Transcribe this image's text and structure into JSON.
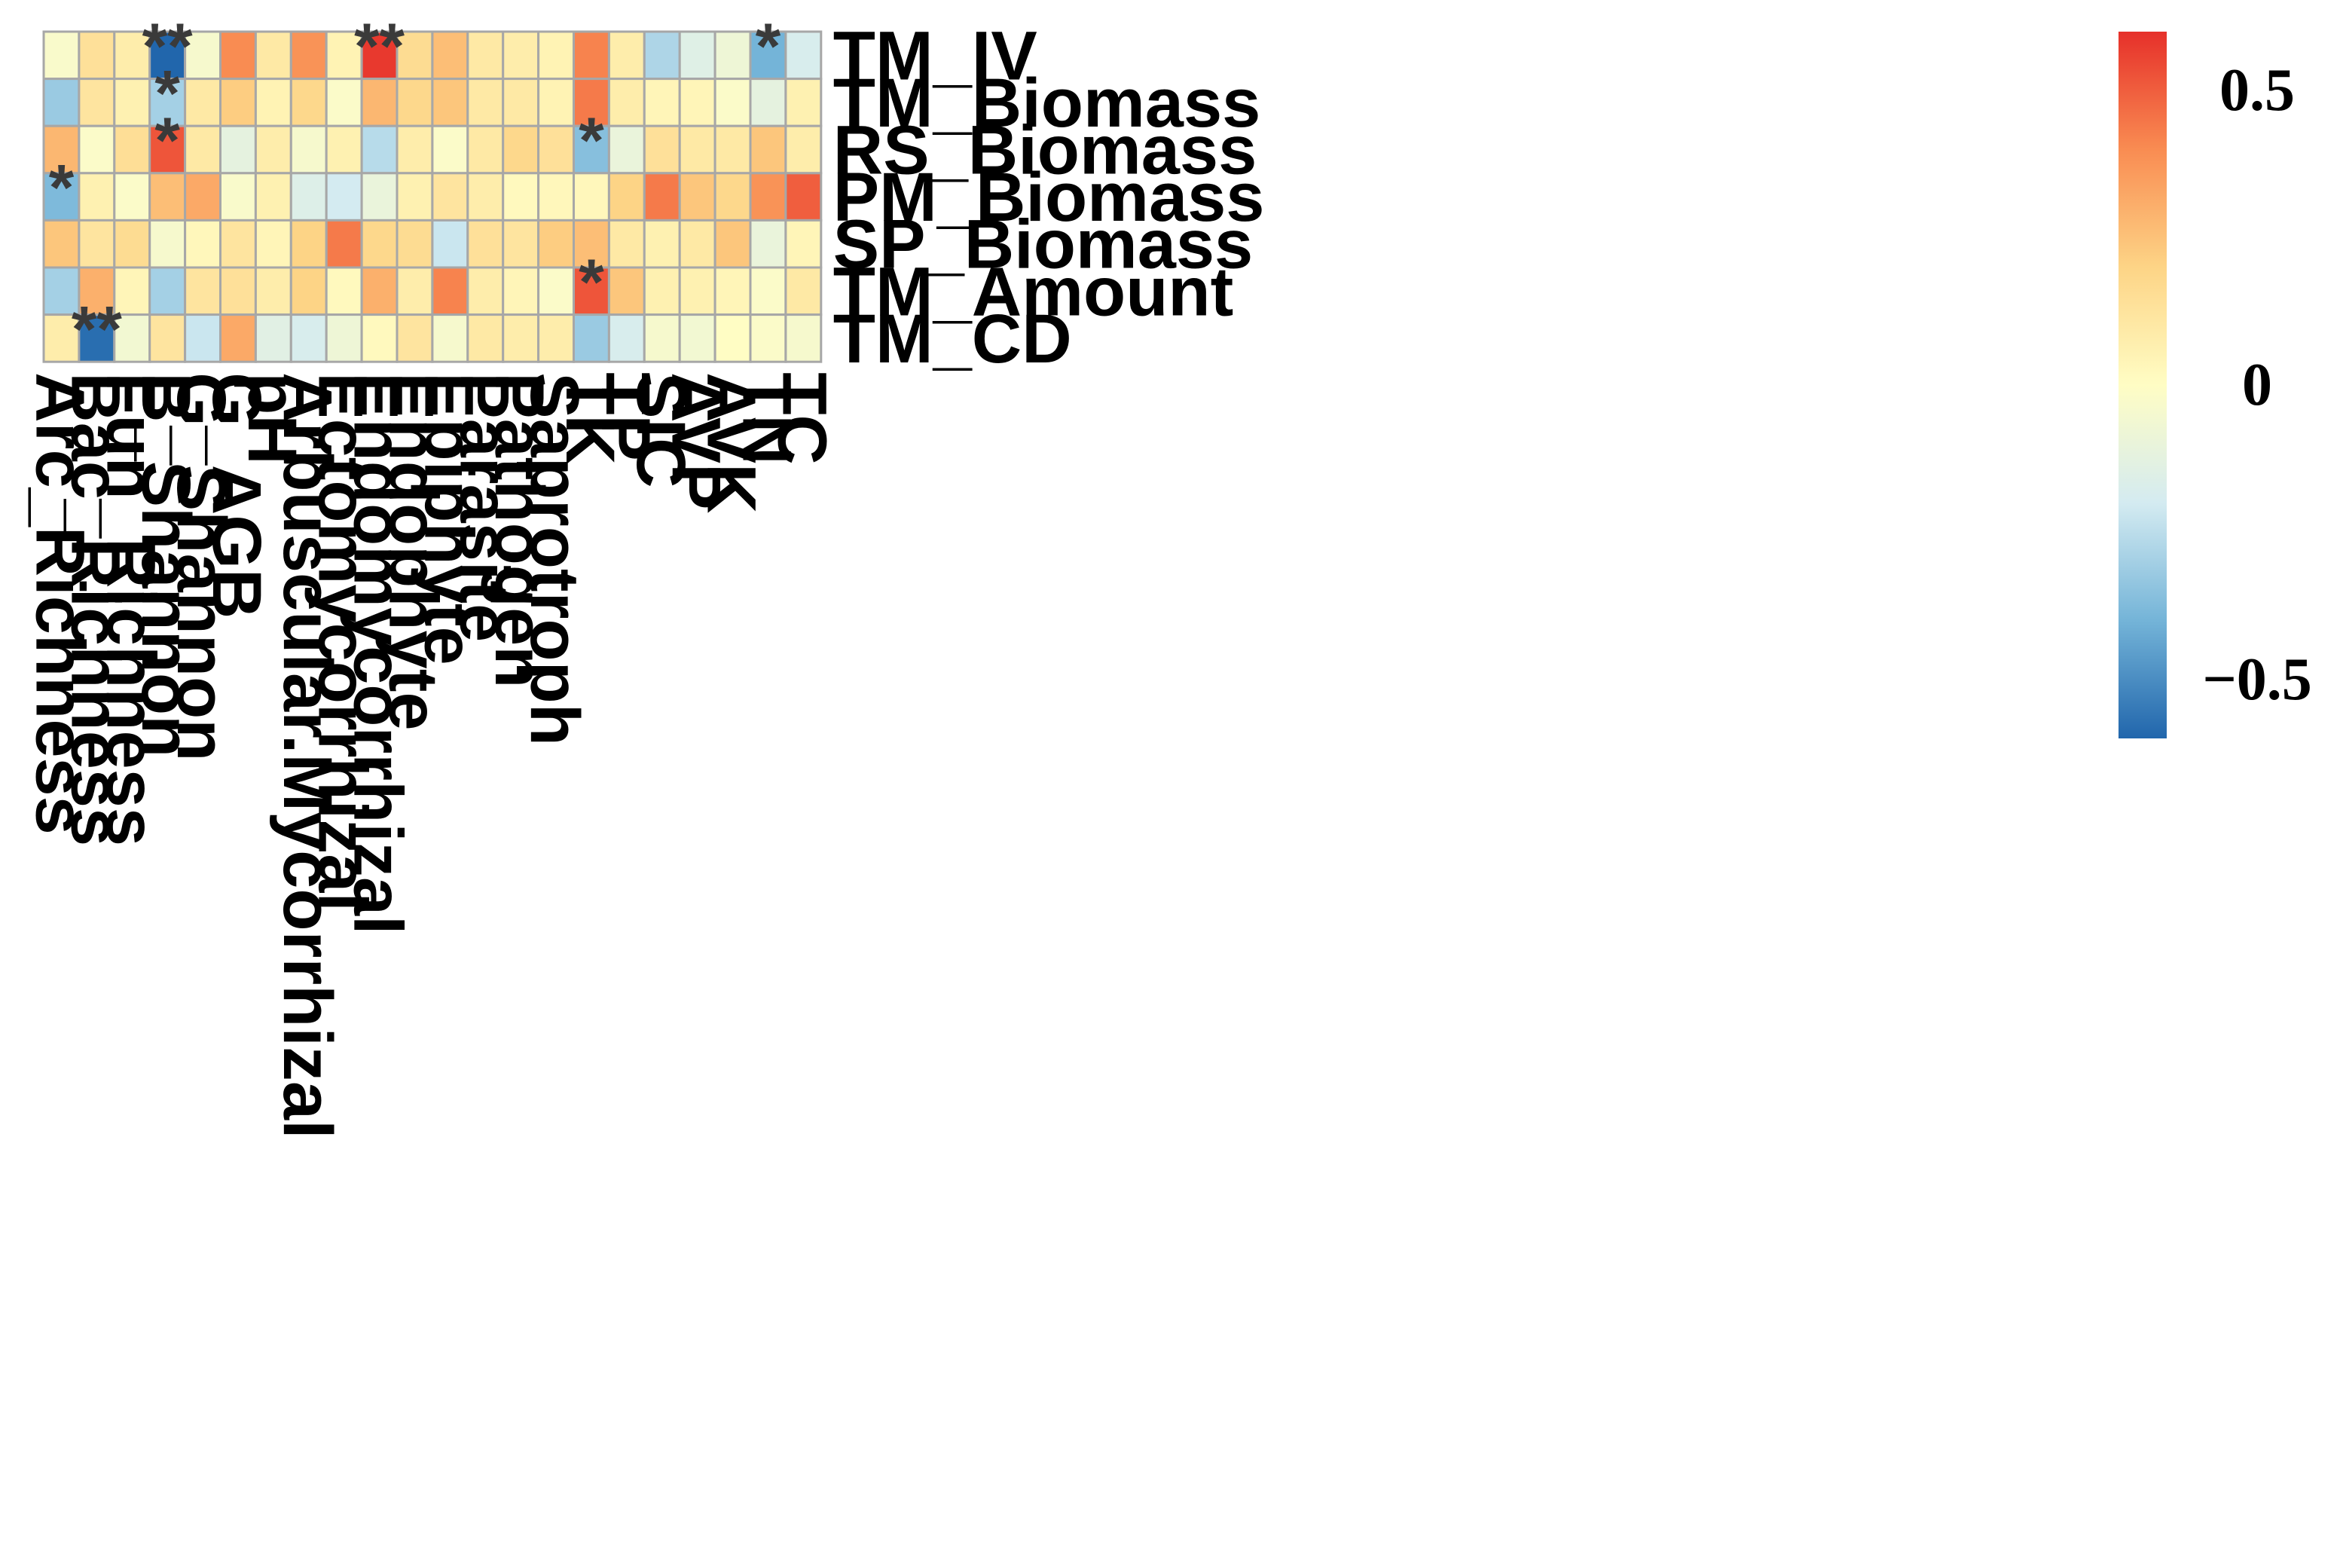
{
  "chart_data": {
    "type": "heatmap",
    "title": "",
    "rows": [
      "TM_IV",
      "TM_Biomass",
      "RS_Biomass",
      "PM_Biomass",
      "SP_Biomass",
      "TM_Amount",
      "TM_CD"
    ],
    "columns": [
      "Arc_Richness",
      "Bac_Richness",
      "Fun_Richness",
      "B_Shannon",
      "G_Shannon",
      "G_AGB",
      "pH",
      "Arbuscular.Mycorrhizal",
      "Ectomycorrhizal",
      "Endomycorrhizal",
      "Endophyte",
      "Epiphyte",
      "Parasite",
      "Pathogen",
      "Saprotroph",
      "TK",
      "TP",
      "SIC",
      "AVP",
      "AVK",
      "TN",
      "TC"
    ],
    "values": [
      [
        -0.03,
        0.14,
        0.08,
        -0.6,
        -0.04,
        0.4,
        0.1,
        0.38,
        0.05,
        0.58,
        0.16,
        0.26,
        0.1,
        0.08,
        0.05,
        0.42,
        0.08,
        -0.28,
        -0.15,
        -0.08,
        -0.4,
        -0.18
      ],
      [
        -0.32,
        0.12,
        0.06,
        -0.3,
        0.1,
        0.22,
        0.05,
        0.18,
        -0.02,
        0.28,
        0.18,
        0.24,
        0.1,
        0.1,
        0.05,
        0.44,
        0.08,
        0.04,
        0.04,
        -0.02,
        -0.12,
        0.06
      ],
      [
        0.28,
        -0.02,
        0.15,
        0.52,
        0.1,
        -0.12,
        0.08,
        -0.04,
        0.06,
        -0.26,
        0.08,
        -0.02,
        0.1,
        0.18,
        0.14,
        -0.36,
        -0.1,
        0.14,
        0.1,
        0.1,
        0.24,
        0.08
      ],
      [
        -0.38,
        0.06,
        -0.02,
        0.26,
        0.32,
        -0.03,
        0.06,
        -0.16,
        -0.2,
        -0.1,
        0.06,
        0.12,
        0.08,
        0.02,
        0.03,
        0.03,
        0.2,
        0.44,
        0.24,
        0.18,
        0.38,
        0.5
      ],
      [
        0.24,
        0.12,
        0.16,
        -0.04,
        0.03,
        0.12,
        0.04,
        0.2,
        0.44,
        0.18,
        0.16,
        -0.22,
        0.14,
        0.12,
        0.22,
        0.26,
        0.1,
        0.06,
        0.1,
        0.24,
        -0.1,
        0.04
      ],
      [
        -0.3,
        0.3,
        0.04,
        -0.3,
        0.12,
        0.14,
        0.08,
        0.2,
        0.02,
        0.3,
        0.08,
        0.42,
        0.08,
        0.04,
        -0.02,
        0.52,
        0.24,
        0.06,
        0.06,
        0.04,
        -0.02,
        0.1
      ],
      [
        0.08,
        -0.58,
        -0.06,
        0.12,
        -0.22,
        0.32,
        -0.14,
        -0.18,
        -0.08,
        0.02,
        0.12,
        -0.04,
        0.1,
        0.08,
        0.08,
        -0.32,
        -0.18,
        -0.04,
        -0.06,
        0.0,
        -0.02,
        -0.04
      ]
    ],
    "significance": [
      [
        "",
        "",
        "",
        "**",
        "",
        "",
        "",
        "",
        "",
        "**",
        "",
        "",
        "",
        "",
        "",
        "",
        "",
        "",
        "",
        "",
        "*",
        ""
      ],
      [
        "",
        "",
        "",
        "*",
        "",
        "",
        "",
        "",
        "",
        "",
        "",
        "",
        "",
        "",
        "",
        "",
        "",
        "",
        "",
        "",
        "",
        ""
      ],
      [
        "",
        "",
        "",
        "*",
        "",
        "",
        "",
        "",
        "",
        "",
        "",
        "",
        "",
        "",
        "",
        "*",
        "",
        "",
        "",
        "",
        "",
        ""
      ],
      [
        "*",
        "",
        "",
        "",
        "",
        "",
        "",
        "",
        "",
        "",
        "",
        "",
        "",
        "",
        "",
        "",
        "",
        "",
        "",
        "",
        "",
        ""
      ],
      [
        "",
        "",
        "",
        "",
        "",
        "",
        "",
        "",
        "",
        "",
        "",
        "",
        "",
        "",
        "",
        "",
        "",
        "",
        "",
        "",
        "",
        ""
      ],
      [
        "",
        "",
        "",
        "",
        "",
        "",
        "",
        "",
        "",
        "",
        "",
        "",
        "",
        "",
        "",
        "*",
        "",
        "",
        "",
        "",
        "",
        ""
      ],
      [
        "",
        "**",
        "",
        "",
        "",
        "",
        "",
        "",
        "",
        "",
        "",
        "",
        "",
        "",
        "",
        "",
        "",
        "",
        "",
        "",
        "",
        ""
      ]
    ],
    "color_range": [
      -0.6,
      0.6
    ],
    "legend": {
      "position": "right",
      "ticks": [
        {
          "value": 0.5,
          "label": "0.5"
        },
        {
          "value": 0,
          "label": "0"
        },
        {
          "value": -0.5,
          "label": "−0.5"
        }
      ],
      "colors": [
        "#2166ac",
        "#74b4d8",
        "#d4ebf1",
        "#fffdc4",
        "#fdd486",
        "#f98c52",
        "#e6302a"
      ]
    },
    "grid_color": "#a7a7a7"
  }
}
